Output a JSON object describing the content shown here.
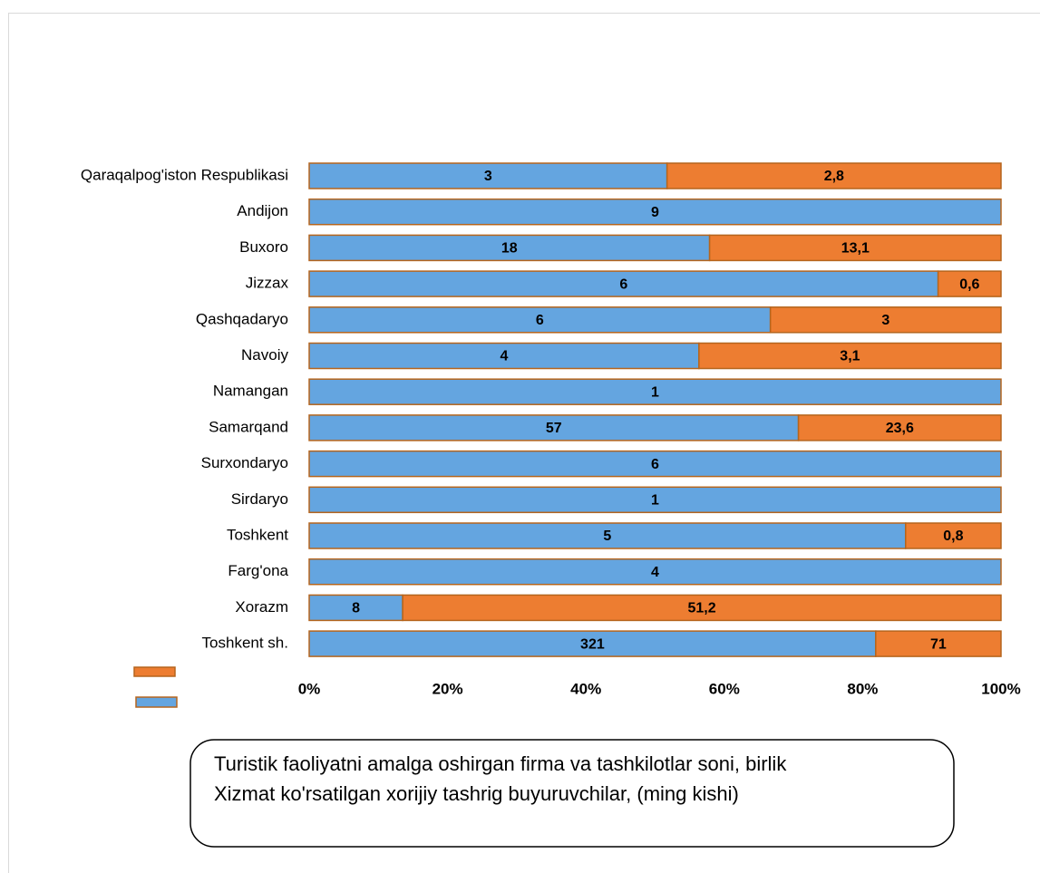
{
  "chart_data": {
    "type": "bar",
    "orientation": "horizontal",
    "stacked": "percent",
    "categories": [
      "Qaraqalpog'iston Respublikasi",
      "Andijon",
      "Buxoro",
      "Jizzax",
      "Qashqadaryo",
      "Navoiy",
      "Namangan",
      "Samarqand",
      "Surxondaryo",
      "Sirdaryo",
      "Toshkent",
      "Farg'ona",
      "Xorazm",
      "Toshkent sh."
    ],
    "series": [
      {
        "name": "Turistik faoliyatni amalga oshirgan firma va tashkilotlar soni, birlik",
        "color": "#64a5e0",
        "values": [
          3,
          9,
          18,
          6,
          6,
          4,
          1,
          57,
          6,
          1,
          5,
          4,
          8,
          321
        ]
      },
      {
        "name": "Xizmat ko'rsatilgan xorijiy tashrig buyuruvchilar, (ming kishi)",
        "color": "#ed7d31",
        "values": [
          2.8,
          null,
          13.1,
          0.6,
          3,
          3.1,
          null,
          23.6,
          null,
          null,
          0.8,
          null,
          51.2,
          71
        ],
        "value_labels": [
          "2,8",
          null,
          "13,1",
          "0,6",
          "3",
          "3,1",
          null,
          "23,6",
          null,
          null,
          "0,8",
          null,
          "51,2",
          "71"
        ]
      }
    ],
    "xlim": [
      0,
      100
    ],
    "xticks": [
      {
        "value": 0,
        "label": "0%"
      },
      {
        "value": 20,
        "label": "20%"
      },
      {
        "value": 40,
        "label": "40%"
      },
      {
        "value": 60,
        "label": "60%"
      },
      {
        "value": 80,
        "label": "80%"
      },
      {
        "value": 100,
        "label": "100%"
      }
    ],
    "grid": false
  }
}
